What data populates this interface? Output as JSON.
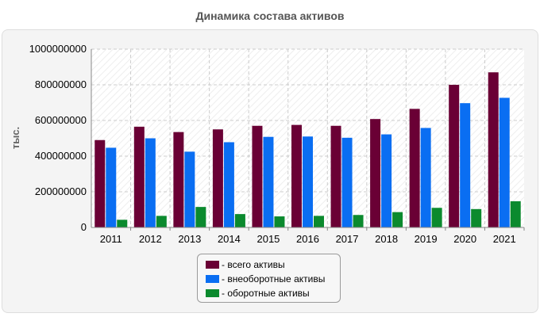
{
  "chart_data": {
    "type": "bar",
    "title": "Динамика состава активов",
    "xlabel": "",
    "ylabel": "тыс.",
    "categories": [
      "2011",
      "2012",
      "2013",
      "2014",
      "2015",
      "2016",
      "2017",
      "2018",
      "2019",
      "2020",
      "2021"
    ],
    "ylim": [
      0,
      1000000000
    ],
    "yticks": [
      "0",
      "200000000",
      "400000000",
      "600000000",
      "800000000",
      "1000000000"
    ],
    "grid": true,
    "legend_position": "bottom",
    "series": [
      {
        "name": "- всего активы",
        "color": "#6a0035",
        "values": [
          490000000,
          565000000,
          535000000,
          550000000,
          570000000,
          575000000,
          570000000,
          608000000,
          665000000,
          800000000,
          870000000
        ]
      },
      {
        "name": "- внеоборотные активы",
        "color": "#0a6ef2",
        "values": [
          447000000,
          500000000,
          425000000,
          478000000,
          508000000,
          510000000,
          503000000,
          522000000,
          558000000,
          697000000,
          727000000
        ]
      },
      {
        "name": "- оборотные активы",
        "color": "#0b8a2e",
        "values": [
          43000000,
          65000000,
          115000000,
          75000000,
          62000000,
          65000000,
          70000000,
          86000000,
          110000000,
          103000000,
          147000000
        ]
      }
    ]
  }
}
